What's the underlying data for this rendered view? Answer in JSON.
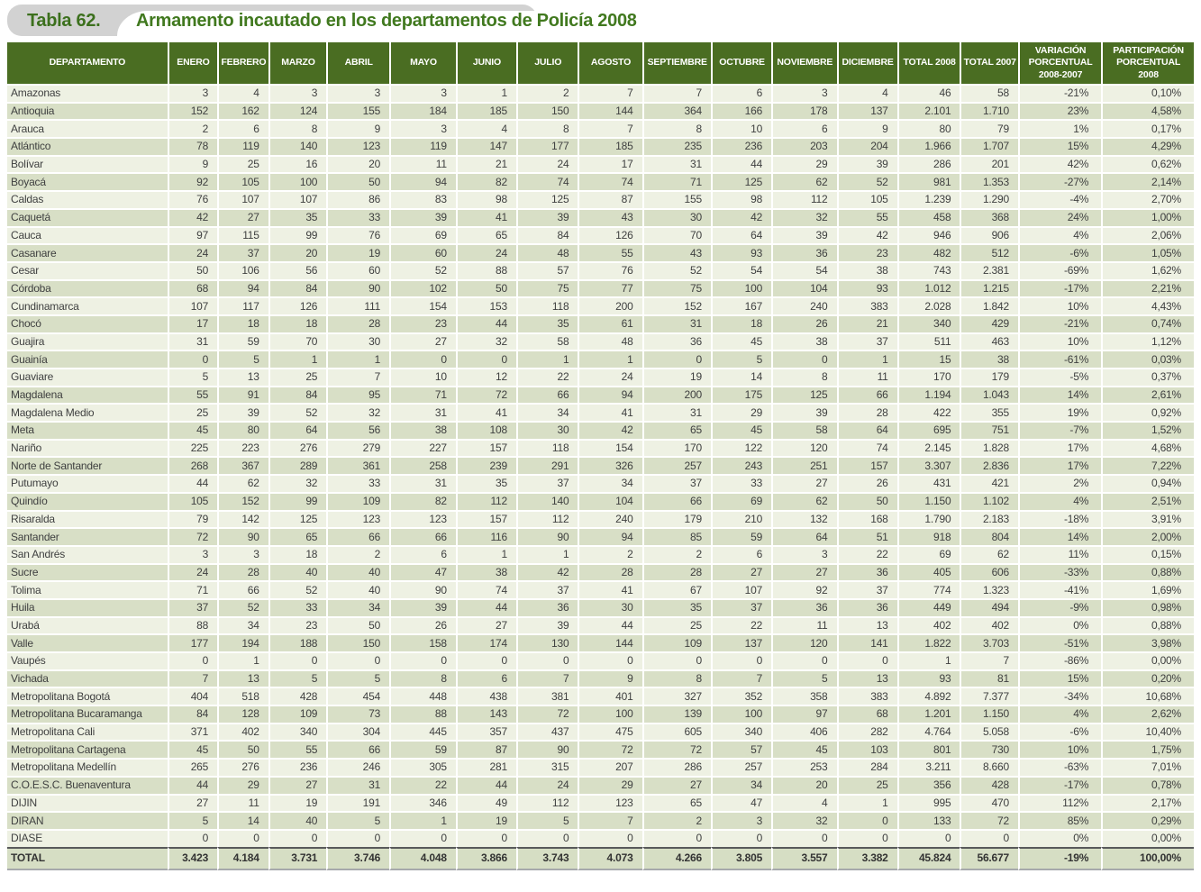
{
  "title": {
    "badge": "Tabla 62.",
    "text": "Armamento incautado en los departamentos de Policía 2008"
  },
  "colors": {
    "header_green": "#4a6d22",
    "title_green": "#41791f",
    "row_light": "#eef1e3",
    "row_dark": "#d8dfc6",
    "total_row": "#d6dec4",
    "badge_gray": "#d2d2d2"
  },
  "table": {
    "column_widths_pct": [
      13.5,
      4.2,
      4.3,
      4.9,
      5.3,
      5.6,
      5.1,
      5.2,
      5.4,
      5.8,
      5.1,
      5.5,
      5.1,
      5.3,
      4.9,
      7.0,
      7.8
    ],
    "columns": [
      "DEPARTAMENTO",
      "ENERO",
      "FEBRERO",
      "MARZO",
      "ABRIL",
      "MAYO",
      "JUNIO",
      "JULIO",
      "AGOSTO",
      "SEPTIEMBRE",
      "OCTUBRE",
      "NOVIEMBRE",
      "DICIEMBRE",
      "TOTAL 2008",
      "TOTAL 2007",
      "VARIACIÓN\nPORCENTUAL\n2008-2007",
      "PARTICIPACIÓN\nPORCENTUAL\n2008"
    ],
    "rows": [
      [
        "Amazonas",
        "3",
        "4",
        "3",
        "3",
        "3",
        "1",
        "2",
        "7",
        "7",
        "6",
        "3",
        "4",
        "46",
        "58",
        "-21%",
        "0,10%"
      ],
      [
        "Antioquia",
        "152",
        "162",
        "124",
        "155",
        "184",
        "185",
        "150",
        "144",
        "364",
        "166",
        "178",
        "137",
        "2.101",
        "1.710",
        "23%",
        "4,58%"
      ],
      [
        "Arauca",
        "2",
        "6",
        "8",
        "9",
        "3",
        "4",
        "8",
        "7",
        "8",
        "10",
        "6",
        "9",
        "80",
        "79",
        "1%",
        "0,17%"
      ],
      [
        "Atlántico",
        "78",
        "119",
        "140",
        "123",
        "119",
        "147",
        "177",
        "185",
        "235",
        "236",
        "203",
        "204",
        "1.966",
        "1.707",
        "15%",
        "4,29%"
      ],
      [
        "Bolívar",
        "9",
        "25",
        "16",
        "20",
        "11",
        "21",
        "24",
        "17",
        "31",
        "44",
        "29",
        "39",
        "286",
        "201",
        "42%",
        "0,62%"
      ],
      [
        "Boyacá",
        "92",
        "105",
        "100",
        "50",
        "94",
        "82",
        "74",
        "74",
        "71",
        "125",
        "62",
        "52",
        "981",
        "1.353",
        "-27%",
        "2,14%"
      ],
      [
        "Caldas",
        "76",
        "107",
        "107",
        "86",
        "83",
        "98",
        "125",
        "87",
        "155",
        "98",
        "112",
        "105",
        "1.239",
        "1.290",
        "-4%",
        "2,70%"
      ],
      [
        "Caquetá",
        "42",
        "27",
        "35",
        "33",
        "39",
        "41",
        "39",
        "43",
        "30",
        "42",
        "32",
        "55",
        "458",
        "368",
        "24%",
        "1,00%"
      ],
      [
        "Cauca",
        "97",
        "115",
        "99",
        "76",
        "69",
        "65",
        "84",
        "126",
        "70",
        "64",
        "39",
        "42",
        "946",
        "906",
        "4%",
        "2,06%"
      ],
      [
        "Casanare",
        "24",
        "37",
        "20",
        "19",
        "60",
        "24",
        "48",
        "55",
        "43",
        "93",
        "36",
        "23",
        "482",
        "512",
        "-6%",
        "1,05%"
      ],
      [
        "Cesar",
        "50",
        "106",
        "56",
        "60",
        "52",
        "88",
        "57",
        "76",
        "52",
        "54",
        "54",
        "38",
        "743",
        "2.381",
        "-69%",
        "1,62%"
      ],
      [
        "Córdoba",
        "68",
        "94",
        "84",
        "90",
        "102",
        "50",
        "75",
        "77",
        "75",
        "100",
        "104",
        "93",
        "1.012",
        "1.215",
        "-17%",
        "2,21%"
      ],
      [
        "Cundinamarca",
        "107",
        "117",
        "126",
        "111",
        "154",
        "153",
        "118",
        "200",
        "152",
        "167",
        "240",
        "383",
        "2.028",
        "1.842",
        "10%",
        "4,43%"
      ],
      [
        "Chocó",
        "17",
        "18",
        "18",
        "28",
        "23",
        "44",
        "35",
        "61",
        "31",
        "18",
        "26",
        "21",
        "340",
        "429",
        "-21%",
        "0,74%"
      ],
      [
        "Guajira",
        "31",
        "59",
        "70",
        "30",
        "27",
        "32",
        "58",
        "48",
        "36",
        "45",
        "38",
        "37",
        "511",
        "463",
        "10%",
        "1,12%"
      ],
      [
        "Guainía",
        "0",
        "5",
        "1",
        "1",
        "0",
        "0",
        "1",
        "1",
        "0",
        "5",
        "0",
        "1",
        "15",
        "38",
        "-61%",
        "0,03%"
      ],
      [
        "Guaviare",
        "5",
        "13",
        "25",
        "7",
        "10",
        "12",
        "22",
        "24",
        "19",
        "14",
        "8",
        "11",
        "170",
        "179",
        "-5%",
        "0,37%"
      ],
      [
        "Magdalena",
        "55",
        "91",
        "84",
        "95",
        "71",
        "72",
        "66",
        "94",
        "200",
        "175",
        "125",
        "66",
        "1.194",
        "1.043",
        "14%",
        "2,61%"
      ],
      [
        "Magdalena Medio",
        "25",
        "39",
        "52",
        "32",
        "31",
        "41",
        "34",
        "41",
        "31",
        "29",
        "39",
        "28",
        "422",
        "355",
        "19%",
        "0,92%"
      ],
      [
        "Meta",
        "45",
        "80",
        "64",
        "56",
        "38",
        "108",
        "30",
        "42",
        "65",
        "45",
        "58",
        "64",
        "695",
        "751",
        "-7%",
        "1,52%"
      ],
      [
        "Nariño",
        "225",
        "223",
        "276",
        "279",
        "227",
        "157",
        "118",
        "154",
        "170",
        "122",
        "120",
        "74",
        "2.145",
        "1.828",
        "17%",
        "4,68%"
      ],
      [
        "Norte de Santander",
        "268",
        "367",
        "289",
        "361",
        "258",
        "239",
        "291",
        "326",
        "257",
        "243",
        "251",
        "157",
        "3.307",
        "2.836",
        "17%",
        "7,22%"
      ],
      [
        "Putumayo",
        "44",
        "62",
        "32",
        "33",
        "31",
        "35",
        "37",
        "34",
        "37",
        "33",
        "27",
        "26",
        "431",
        "421",
        "2%",
        "0,94%"
      ],
      [
        "Quindío",
        "105",
        "152",
        "99",
        "109",
        "82",
        "112",
        "140",
        "104",
        "66",
        "69",
        "62",
        "50",
        "1.150",
        "1.102",
        "4%",
        "2,51%"
      ],
      [
        "Risaralda",
        "79",
        "142",
        "125",
        "123",
        "123",
        "157",
        "112",
        "240",
        "179",
        "210",
        "132",
        "168",
        "1.790",
        "2.183",
        "-18%",
        "3,91%"
      ],
      [
        "Santander",
        "72",
        "90",
        "65",
        "66",
        "66",
        "116",
        "90",
        "94",
        "85",
        "59",
        "64",
        "51",
        "918",
        "804",
        "14%",
        "2,00%"
      ],
      [
        "San Andrés",
        "3",
        "3",
        "18",
        "2",
        "6",
        "1",
        "1",
        "2",
        "2",
        "6",
        "3",
        "22",
        "69",
        "62",
        "11%",
        "0,15%"
      ],
      [
        "Sucre",
        "24",
        "28",
        "40",
        "40",
        "47",
        "38",
        "42",
        "28",
        "28",
        "27",
        "27",
        "36",
        "405",
        "606",
        "-33%",
        "0,88%"
      ],
      [
        "Tolima",
        "71",
        "66",
        "52",
        "40",
        "90",
        "74",
        "37",
        "41",
        "67",
        "107",
        "92",
        "37",
        "774",
        "1.323",
        "-41%",
        "1,69%"
      ],
      [
        "Huila",
        "37",
        "52",
        "33",
        "34",
        "39",
        "44",
        "36",
        "30",
        "35",
        "37",
        "36",
        "36",
        "449",
        "494",
        "-9%",
        "0,98%"
      ],
      [
        "Urabá",
        "88",
        "34",
        "23",
        "50",
        "26",
        "27",
        "39",
        "44",
        "25",
        "22",
        "11",
        "13",
        "402",
        "402",
        "0%",
        "0,88%"
      ],
      [
        "Valle",
        "177",
        "194",
        "188",
        "150",
        "158",
        "174",
        "130",
        "144",
        "109",
        "137",
        "120",
        "141",
        "1.822",
        "3.703",
        "-51%",
        "3,98%"
      ],
      [
        "Vaupés",
        "0",
        "1",
        "0",
        "0",
        "0",
        "0",
        "0",
        "0",
        "0",
        "0",
        "0",
        "0",
        "1",
        "7",
        "-86%",
        "0,00%"
      ],
      [
        "Vichada",
        "7",
        "13",
        "5",
        "5",
        "8",
        "6",
        "7",
        "9",
        "8",
        "7",
        "5",
        "13",
        "93",
        "81",
        "15%",
        "0,20%"
      ],
      [
        "Metropolitana Bogotá",
        "404",
        "518",
        "428",
        "454",
        "448",
        "438",
        "381",
        "401",
        "327",
        "352",
        "358",
        "383",
        "4.892",
        "7.377",
        "-34%",
        "10,68%"
      ],
      [
        "Metropolitana Bucaramanga",
        "84",
        "128",
        "109",
        "73",
        "88",
        "143",
        "72",
        "100",
        "139",
        "100",
        "97",
        "68",
        "1.201",
        "1.150",
        "4%",
        "2,62%"
      ],
      [
        "Metropolitana Cali",
        "371",
        "402",
        "340",
        "304",
        "445",
        "357",
        "437",
        "475",
        "605",
        "340",
        "406",
        "282",
        "4.764",
        "5.058",
        "-6%",
        "10,40%"
      ],
      [
        "Metropolitana Cartagena",
        "45",
        "50",
        "55",
        "66",
        "59",
        "87",
        "90",
        "72",
        "72",
        "57",
        "45",
        "103",
        "801",
        "730",
        "10%",
        "1,75%"
      ],
      [
        "Metropolitana Medellín",
        "265",
        "276",
        "236",
        "246",
        "305",
        "281",
        "315",
        "207",
        "286",
        "257",
        "253",
        "284",
        "3.211",
        "8.660",
        "-63%",
        "7,01%"
      ],
      [
        "C.O.E.S.C. Buenaventura",
        "44",
        "29",
        "27",
        "31",
        "22",
        "44",
        "24",
        "29",
        "27",
        "34",
        "20",
        "25",
        "356",
        "428",
        "-17%",
        "0,78%"
      ],
      [
        "DIJIN",
        "27",
        "11",
        "19",
        "191",
        "346",
        "49",
        "112",
        "123",
        "65",
        "47",
        "4",
        "1",
        "995",
        "470",
        "112%",
        "2,17%"
      ],
      [
        "DIRAN",
        "5",
        "14",
        "40",
        "5",
        "1",
        "19",
        "5",
        "7",
        "2",
        "3",
        "32",
        "0",
        "133",
        "72",
        "85%",
        "0,29%"
      ],
      [
        "DIASE",
        "0",
        "0",
        "0",
        "0",
        "0",
        "0",
        "0",
        "0",
        "0",
        "0",
        "0",
        "0",
        "0",
        "0",
        "0%",
        "0,00%"
      ]
    ],
    "total_row": [
      "TOTAL",
      "3.423",
      "4.184",
      "3.731",
      "3.746",
      "4.048",
      "3.866",
      "3.743",
      "4.073",
      "4.266",
      "3.805",
      "3.557",
      "3.382",
      "45.824",
      "56.677",
      "-19%",
      "100,00%"
    ]
  }
}
